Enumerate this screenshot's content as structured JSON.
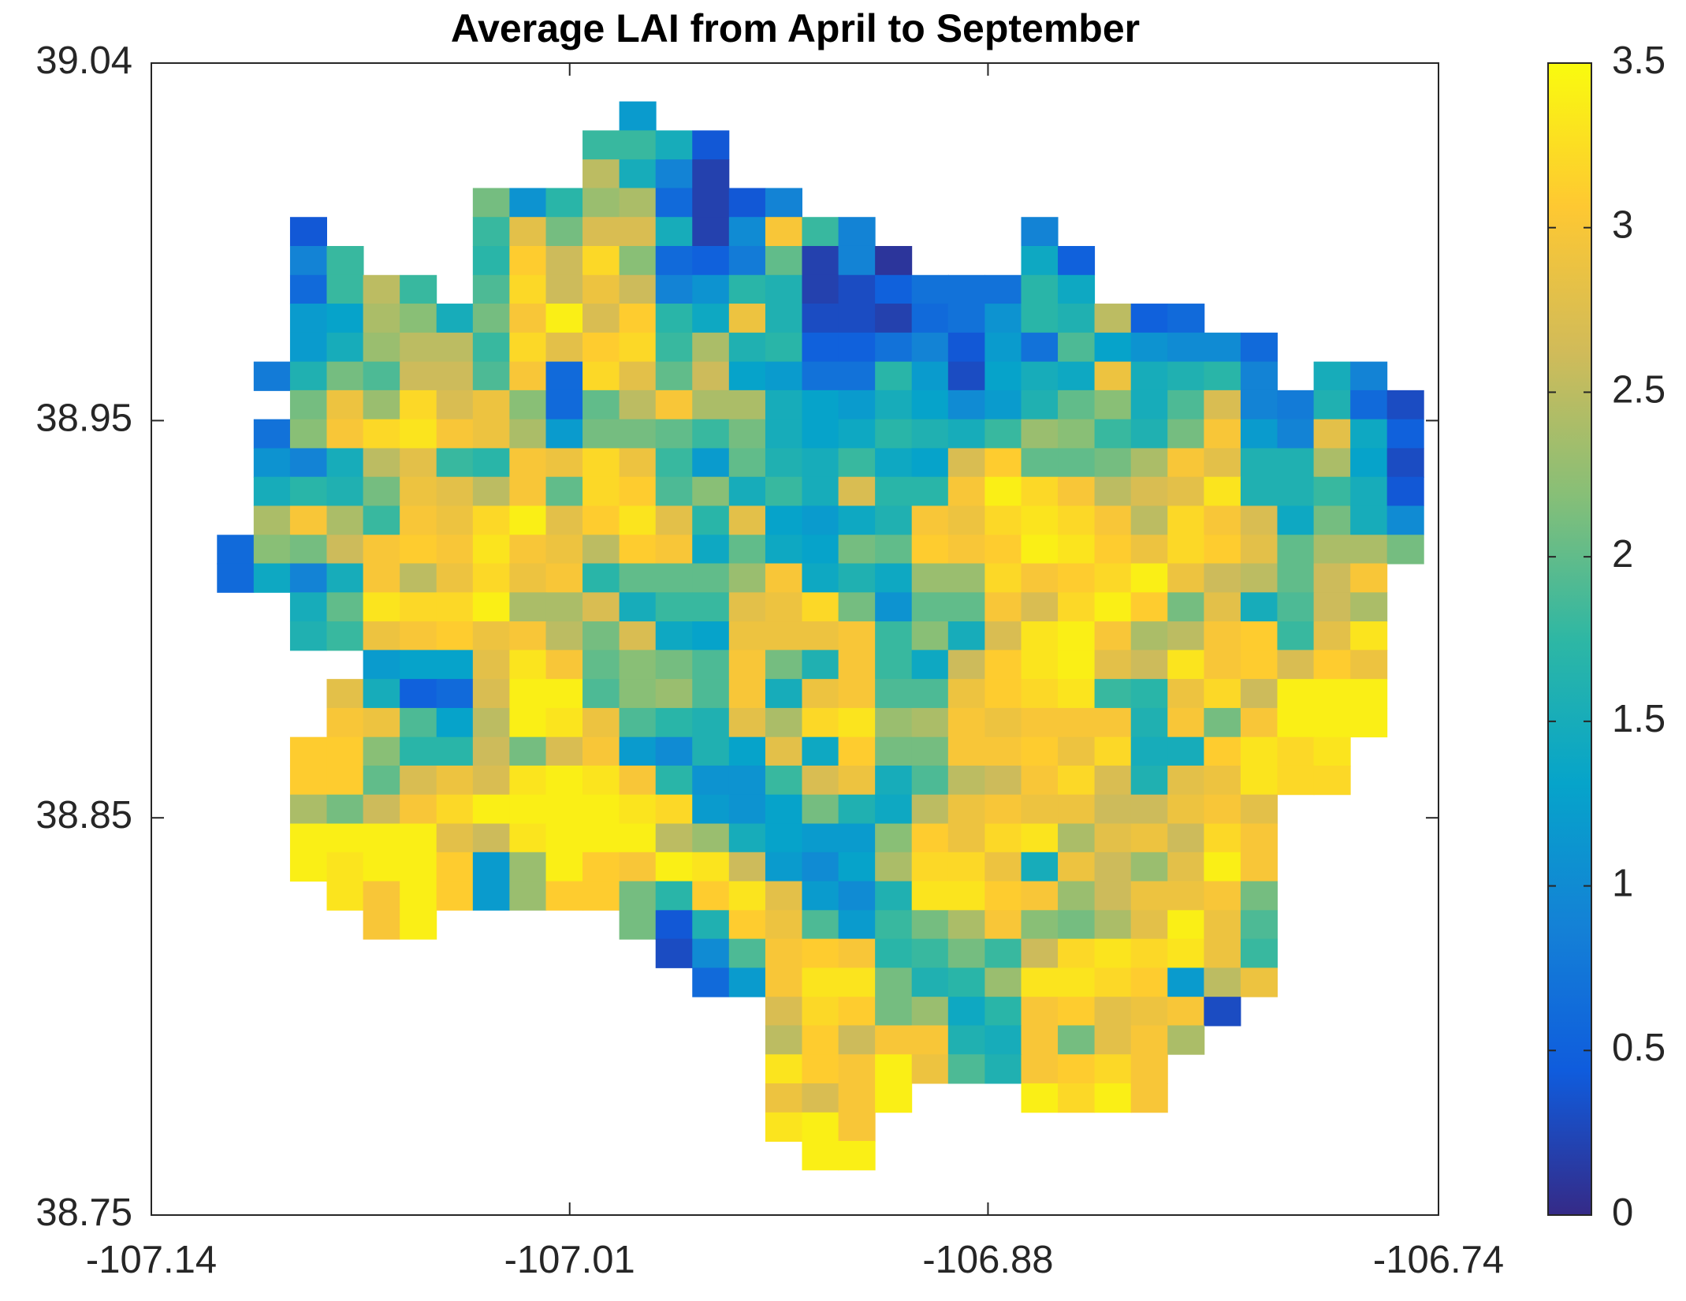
{
  "chart_data": {
    "type": "heatmap",
    "title": "Average LAI from April to September",
    "colormap": [
      "#352a87",
      "#0f5cdd",
      "#1481d6",
      "#06a4ca",
      "#2eb7a4",
      "#87bf77",
      "#d1bb59",
      "#fec832",
      "#f9fb0e"
    ],
    "xlim": [
      -107.14,
      -106.74
    ],
    "xticks": [
      -107.14,
      -107.01,
      -106.88,
      -106.74
    ],
    "ylim": [
      38.75,
      39.04
    ],
    "yticks": [
      38.75,
      38.85,
      38.95,
      39.04
    ],
    "clim": [
      0,
      3.5
    ],
    "cticks": [
      0,
      0.5,
      1,
      1.5,
      2,
      2.5,
      3,
      3.5
    ],
    "x": [
      -107.1139,
      -107.1025,
      -107.0912,
      -107.0798,
      -107.0685,
      -107.0571,
      -107.0457,
      -107.0344,
      -107.023,
      -107.0117,
      -107.0003,
      -106.9889,
      -106.9776,
      -106.9662,
      -106.9548,
      -106.9435,
      -106.9321,
      -106.9208,
      -106.9094,
      -106.898,
      -106.8867,
      -106.8753,
      -106.864,
      -106.8526,
      -106.8412,
      -106.8299,
      -106.8185,
      -106.8072,
      -106.7958,
      -106.7844,
      -106.7731,
      -106.7617,
      -106.7503
    ],
    "y": [
      39.0267,
      39.0194,
      39.0121,
      39.0049,
      38.9976,
      38.9903,
      38.983,
      38.9758,
      38.9685,
      38.9612,
      38.954,
      38.9467,
      38.9394,
      38.9322,
      38.9249,
      38.9176,
      38.9104,
      38.9031,
      38.8958,
      38.8886,
      38.8813,
      38.874,
      38.8667,
      38.8595,
      38.8522,
      38.8449,
      38.8377,
      38.8304,
      38.8231,
      38.8159,
      38.8086,
      38.8013,
      38.7941,
      38.7868,
      38.7795,
      38.7722,
      38.765
    ],
    "z": [
      [
        null,
        null,
        null,
        null,
        null,
        null,
        null,
        null,
        null,
        null,
        null,
        1.2,
        null,
        null,
        null,
        null,
        null,
        null,
        null,
        null,
        null,
        null,
        null,
        null,
        null,
        null,
        null,
        null,
        null,
        null,
        null,
        null,
        null
      ],
      [
        null,
        null,
        null,
        null,
        null,
        null,
        null,
        null,
        null,
        null,
        1.8,
        1.8,
        1.5,
        0.4,
        null,
        null,
        null,
        null,
        null,
        null,
        null,
        null,
        null,
        null,
        null,
        null,
        null,
        null,
        null,
        null,
        null,
        null,
        null
      ],
      [
        null,
        null,
        null,
        null,
        null,
        null,
        null,
        null,
        null,
        null,
        2.5,
        1.5,
        0.9,
        0.2,
        null,
        null,
        null,
        null,
        null,
        null,
        null,
        null,
        null,
        null,
        null,
        null,
        null,
        null,
        null,
        null,
        null,
        null,
        null
      ],
      [
        null,
        null,
        null,
        null,
        null,
        null,
        null,
        2.1,
        1.1,
        1.7,
        2.3,
        2.4,
        0.6,
        0.2,
        0.4,
        0.9,
        null,
        null,
        null,
        null,
        null,
        null,
        null,
        null,
        null,
        null,
        null,
        null,
        null,
        null,
        null,
        null,
        null
      ],
      [
        null,
        null,
        0.4,
        null,
        null,
        null,
        null,
        1.8,
        2.8,
        2.1,
        2.7,
        2.7,
        1.5,
        0.2,
        1.0,
        3.0,
        1.8,
        0.9,
        null,
        null,
        null,
        null,
        0.9,
        null,
        null,
        null,
        null,
        null,
        null,
        null,
        null,
        null,
        null
      ],
      [
        null,
        null,
        0.9,
        1.8,
        null,
        null,
        null,
        1.7,
        3.1,
        2.6,
        3.2,
        2.2,
        0.6,
        0.5,
        0.8,
        2.0,
        0.2,
        0.9,
        0.1,
        null,
        null,
        null,
        1.4,
        0.5,
        null,
        null,
        null,
        null,
        null,
        null,
        null,
        null,
        null
      ],
      [
        null,
        null,
        0.6,
        1.8,
        2.5,
        1.8,
        null,
        1.9,
        3.2,
        2.6,
        2.9,
        2.6,
        0.9,
        1.1,
        1.7,
        1.6,
        0.2,
        0.3,
        0.5,
        0.7,
        0.7,
        0.7,
        1.7,
        1.4,
        null,
        null,
        null,
        null,
        null,
        null,
        null,
        null,
        null
      ],
      [
        null,
        null,
        1.2,
        1.3,
        2.4,
        2.2,
        1.5,
        2.1,
        3.0,
        3.4,
        2.7,
        3.1,
        1.7,
        1.4,
        2.9,
        1.6,
        0.3,
        0.3,
        0.2,
        0.6,
        0.7,
        1.1,
        1.7,
        1.6,
        2.5,
        0.5,
        0.6,
        null,
        null,
        null,
        null,
        null,
        null
      ],
      [
        null,
        null,
        1.2,
        1.5,
        2.3,
        2.5,
        2.5,
        1.8,
        3.2,
        2.8,
        3.1,
        3.2,
        1.8,
        2.4,
        1.6,
        1.7,
        0.5,
        0.5,
        0.7,
        0.9,
        0.4,
        1.2,
        0.7,
        1.9,
        1.3,
        1.1,
        1.0,
        1.0,
        0.6,
        null,
        null,
        null,
        null
      ],
      [
        null,
        0.8,
        1.6,
        2.1,
        1.9,
        2.6,
        2.6,
        1.9,
        3.0,
        0.6,
        3.2,
        2.8,
        2.0,
        2.6,
        1.3,
        1.2,
        0.7,
        0.7,
        1.7,
        1.2,
        0.3,
        1.3,
        1.5,
        1.4,
        2.9,
        1.5,
        1.6,
        1.7,
        0.9,
        null,
        1.5,
        0.9,
        null
      ],
      [
        null,
        null,
        2.1,
        2.9,
        2.3,
        3.2,
        2.7,
        2.9,
        2.2,
        0.6,
        2.0,
        2.5,
        3.0,
        2.4,
        2.4,
        1.5,
        1.3,
        1.2,
        1.5,
        1.3,
        1.0,
        1.2,
        1.6,
        2.0,
        2.2,
        1.5,
        1.9,
        2.7,
        0.9,
        0.8,
        1.6,
        0.6,
        0.3
      ],
      [
        null,
        0.7,
        2.2,
        3.0,
        3.2,
        3.3,
        3.0,
        2.9,
        2.4,
        1.2,
        2.1,
        2.1,
        2.0,
        1.8,
        2.1,
        1.5,
        1.3,
        1.4,
        1.7,
        1.6,
        1.5,
        1.8,
        2.3,
        2.2,
        1.8,
        1.6,
        2.1,
        3.0,
        1.2,
        0.9,
        2.8,
        1.4,
        0.5
      ],
      [
        null,
        1.1,
        0.9,
        1.5,
        2.5,
        2.8,
        1.8,
        1.7,
        3.0,
        2.9,
        3.2,
        2.9,
        1.8,
        1.2,
        2.0,
        1.6,
        1.5,
        1.8,
        1.4,
        1.3,
        2.7,
        3.1,
        2.0,
        2.0,
        2.1,
        2.4,
        3.0,
        2.8,
        1.6,
        1.6,
        2.4,
        1.3,
        0.3
      ],
      [
        null,
        1.5,
        1.7,
        1.6,
        2.1,
        2.9,
        2.8,
        2.5,
        3.0,
        2.0,
        3.2,
        3.1,
        1.9,
        2.2,
        1.5,
        1.8,
        1.5,
        2.7,
        1.7,
        1.7,
        3.0,
        3.4,
        3.2,
        3.0,
        2.5,
        2.7,
        2.8,
        3.3,
        1.6,
        1.6,
        1.8,
        1.5,
        0.4
      ],
      [
        null,
        2.4,
        3.0,
        2.4,
        1.8,
        3.0,
        2.9,
        3.2,
        3.4,
        2.8,
        3.1,
        3.3,
        2.8,
        1.7,
        2.8,
        1.3,
        1.2,
        1.4,
        1.6,
        3.0,
        2.9,
        3.2,
        3.3,
        3.2,
        3.0,
        2.5,
        3.2,
        3.0,
        2.7,
        1.4,
        2.1,
        1.5,
        1.0
      ],
      [
        0.6,
        2.2,
        2.1,
        2.6,
        3.0,
        3.1,
        3.0,
        3.3,
        3.0,
        2.9,
        2.5,
        3.1,
        3.0,
        1.4,
        2.0,
        1.4,
        1.3,
        2.1,
        2.0,
        3.1,
        3.0,
        3.1,
        3.4,
        3.3,
        3.1,
        2.9,
        3.2,
        3.1,
        2.8,
        2.0,
        2.4,
        2.4,
        2.1
      ],
      [
        0.6,
        1.4,
        0.9,
        1.5,
        3.0,
        2.5,
        2.9,
        3.2,
        2.9,
        3.0,
        1.7,
        2.0,
        2.0,
        2.0,
        2.3,
        3.0,
        1.4,
        1.6,
        1.4,
        2.3,
        2.3,
        3.2,
        3.0,
        3.1,
        3.2,
        3.4,
        2.9,
        2.6,
        2.5,
        2.0,
        2.6,
        3.0,
        null
      ],
      [
        null,
        null,
        1.5,
        2.0,
        3.3,
        3.2,
        3.2,
        3.4,
        2.4,
        2.4,
        2.7,
        1.5,
        1.8,
        1.8,
        2.8,
        2.9,
        3.2,
        2.1,
        1.1,
        2.0,
        2.0,
        3.0,
        2.7,
        3.2,
        3.4,
        3.1,
        2.1,
        2.8,
        1.5,
        1.9,
        2.6,
        2.4,
        null
      ],
      [
        null,
        null,
        1.6,
        1.8,
        2.9,
        3.0,
        3.1,
        2.9,
        3.0,
        2.5,
        2.1,
        2.7,
        1.4,
        1.3,
        2.9,
        2.9,
        2.9,
        3.0,
        1.8,
        2.2,
        1.5,
        2.7,
        3.3,
        3.4,
        3.0,
        2.4,
        2.5,
        3.0,
        3.1,
        1.8,
        2.8,
        3.3,
        null
      ],
      [
        null,
        null,
        null,
        null,
        1.2,
        1.3,
        1.3,
        2.8,
        3.3,
        3.0,
        2.0,
        2.2,
        2.1,
        1.9,
        3.0,
        2.1,
        1.6,
        3.0,
        1.8,
        1.4,
        2.6,
        3.1,
        3.3,
        3.4,
        2.8,
        2.6,
        3.3,
        3.0,
        3.1,
        2.7,
        3.1,
        2.9,
        null
      ],
      [
        null,
        null,
        null,
        2.8,
        1.5,
        0.5,
        0.6,
        2.7,
        3.4,
        3.4,
        1.9,
        2.2,
        2.3,
        1.9,
        3.0,
        1.5,
        2.9,
        3.0,
        1.9,
        1.9,
        2.9,
        3.1,
        3.2,
        3.3,
        1.8,
        1.7,
        2.9,
        3.2,
        2.6,
        3.4,
        3.4,
        3.4,
        null
      ],
      [
        null,
        null,
        null,
        3.0,
        2.9,
        1.9,
        1.3,
        2.5,
        3.4,
        3.3,
        2.9,
        1.9,
        1.7,
        1.6,
        2.8,
        2.4,
        3.2,
        3.3,
        2.3,
        2.4,
        3.0,
        2.9,
        3.0,
        3.0,
        3.0,
        1.6,
        3.0,
        2.1,
        3.0,
        3.4,
        3.4,
        3.4,
        null
      ],
      [
        null,
        null,
        3.1,
        3.1,
        2.2,
        1.7,
        1.7,
        2.6,
        2.1,
        2.7,
        3.0,
        1.2,
        1.0,
        1.6,
        1.3,
        2.8,
        1.4,
        3.1,
        2.1,
        2.1,
        3.0,
        3.0,
        3.1,
        2.9,
        3.2,
        1.5,
        1.5,
        3.1,
        3.3,
        3.2,
        3.3,
        null,
        null
      ],
      [
        null,
        null,
        3.1,
        3.1,
        2.0,
        2.7,
        2.9,
        2.7,
        3.3,
        3.4,
        3.3,
        3.0,
        1.7,
        1.1,
        1.1,
        1.8,
        2.7,
        2.9,
        1.5,
        1.9,
        2.5,
        2.6,
        3.0,
        3.2,
        2.7,
        1.6,
        2.8,
        2.9,
        3.3,
        3.2,
        3.2,
        null,
        null
      ],
      [
        null,
        null,
        2.4,
        2.1,
        2.6,
        3.0,
        3.2,
        3.4,
        3.4,
        3.4,
        3.4,
        3.3,
        3.2,
        1.2,
        1.1,
        1.3,
        2.1,
        1.6,
        1.4,
        2.5,
        2.9,
        3.0,
        2.9,
        2.9,
        2.6,
        2.6,
        2.9,
        3.0,
        2.8,
        null,
        null,
        null,
        null
      ],
      [
        null,
        null,
        3.4,
        3.4,
        3.4,
        3.4,
        2.8,
        2.6,
        3.3,
        3.4,
        3.4,
        3.4,
        2.5,
        2.3,
        1.5,
        1.3,
        1.2,
        1.2,
        2.2,
        3.1,
        2.9,
        3.2,
        3.3,
        2.4,
        2.8,
        2.9,
        2.6,
        3.2,
        3.0,
        null,
        null,
        null,
        null
      ],
      [
        null,
        null,
        3.4,
        3.3,
        3.4,
        3.4,
        3.1,
        1.2,
        2.3,
        3.4,
        3.1,
        3.0,
        3.4,
        3.3,
        2.6,
        1.2,
        1.0,
        1.3,
        2.4,
        3.2,
        3.2,
        2.9,
        1.5,
        2.9,
        2.6,
        2.3,
        2.8,
        3.4,
        3.0,
        null,
        null,
        null,
        null
      ],
      [
        null,
        null,
        null,
        3.3,
        3.0,
        3.4,
        3.1,
        1.2,
        2.3,
        3.1,
        3.1,
        2.1,
        1.7,
        3.1,
        3.3,
        2.8,
        1.2,
        1.0,
        1.6,
        3.3,
        3.3,
        3.1,
        3.0,
        2.3,
        2.6,
        2.9,
        2.9,
        3.0,
        2.1,
        null,
        null,
        null,
        null
      ],
      [
        null,
        null,
        null,
        null,
        3.0,
        3.4,
        null,
        null,
        null,
        null,
        null,
        2.1,
        0.4,
        1.6,
        3.1,
        2.9,
        1.9,
        1.2,
        1.8,
        2.1,
        2.4,
        3.0,
        2.2,
        2.1,
        2.4,
        2.8,
        3.4,
        2.9,
        1.9,
        null,
        null,
        null,
        null
      ],
      [
        null,
        null,
        null,
        null,
        null,
        null,
        null,
        null,
        null,
        null,
        null,
        null,
        0.3,
        1.0,
        1.9,
        3.0,
        3.1,
        3.0,
        1.7,
        1.8,
        2.1,
        1.8,
        2.6,
        3.2,
        3.3,
        3.2,
        3.3,
        2.9,
        1.8,
        null,
        null,
        null,
        null
      ],
      [
        null,
        null,
        null,
        null,
        null,
        null,
        null,
        null,
        null,
        null,
        null,
        null,
        null,
        0.6,
        1.2,
        3.0,
        3.3,
        3.3,
        2.1,
        1.6,
        1.7,
        2.3,
        3.3,
        3.3,
        3.2,
        3.1,
        1.2,
        2.5,
        2.9,
        null,
        null,
        null,
        null
      ],
      [
        null,
        null,
        null,
        null,
        null,
        null,
        null,
        null,
        null,
        null,
        null,
        null,
        null,
        null,
        null,
        2.7,
        3.2,
        3.1,
        2.1,
        2.3,
        1.4,
        1.7,
        3.0,
        3.1,
        2.8,
        2.9,
        3.0,
        0.3,
        null,
        null,
        null,
        null,
        null
      ],
      [
        null,
        null,
        null,
        null,
        null,
        null,
        null,
        null,
        null,
        null,
        null,
        null,
        null,
        null,
        null,
        2.5,
        3.1,
        2.6,
        3.0,
        3.0,
        1.6,
        1.5,
        3.0,
        2.1,
        2.8,
        3.0,
        2.4,
        null,
        null,
        null,
        null,
        null,
        null
      ],
      [
        null,
        null,
        null,
        null,
        null,
        null,
        null,
        null,
        null,
        null,
        null,
        null,
        null,
        null,
        null,
        3.3,
        3.1,
        3.0,
        3.4,
        2.9,
        1.9,
        1.6,
        3.0,
        3.1,
        3.2,
        3.0,
        null,
        null,
        null,
        null,
        null,
        null,
        null
      ],
      [
        null,
        null,
        null,
        null,
        null,
        null,
        null,
        null,
        null,
        null,
        null,
        null,
        null,
        null,
        null,
        2.9,
        2.7,
        3.0,
        3.4,
        null,
        null,
        null,
        3.4,
        3.2,
        3.4,
        3.0,
        null,
        null,
        null,
        null,
        null,
        null,
        null
      ],
      [
        null,
        null,
        null,
        null,
        null,
        null,
        null,
        null,
        null,
        null,
        null,
        null,
        null,
        null,
        null,
        3.3,
        3.4,
        3.0,
        null,
        null,
        null,
        null,
        null,
        null,
        null,
        null,
        null,
        null,
        null,
        null,
        null,
        null,
        null
      ],
      [
        null,
        null,
        null,
        null,
        null,
        null,
        null,
        null,
        null,
        null,
        null,
        null,
        null,
        null,
        null,
        null,
        3.4,
        3.4,
        null,
        null,
        null,
        null,
        null,
        null,
        null,
        null,
        null,
        null,
        null,
        null,
        null,
        null,
        null
      ]
    ]
  }
}
